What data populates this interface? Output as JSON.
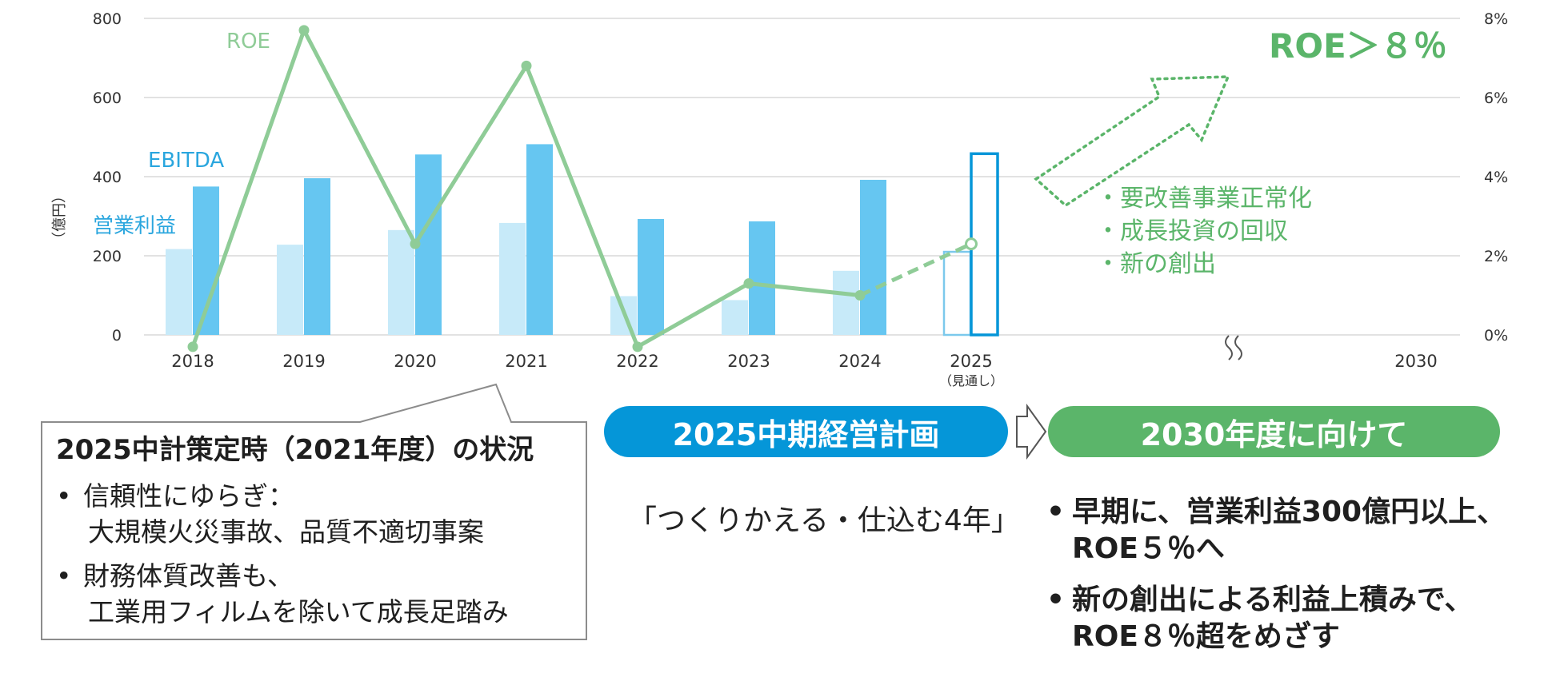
{
  "chart_data": {
    "type": "bar",
    "categories": [
      "2018",
      "2019",
      "2020",
      "2021",
      "2022",
      "2023",
      "2024",
      "2025"
    ],
    "forecast_note": "（見通し）",
    "x_extra_label": "2030",
    "y_left": {
      "label": "（億円）",
      "ticks": [
        "0",
        "200",
        "400",
        "600",
        "800"
      ],
      "range": [
        0,
        800
      ]
    },
    "y_right": {
      "ticks": [
        "0%",
        "2%",
        "4%",
        "6%",
        "8%"
      ],
      "range": [
        0,
        8
      ]
    },
    "series": [
      {
        "name": "営業利益",
        "type": "bar",
        "color": "#c7eaf9",
        "values": [
          217,
          228,
          265,
          283,
          98,
          88,
          162,
          210
        ]
      },
      {
        "name": "EBITDA",
        "type": "bar",
        "color": "#66c6f1",
        "values": [
          375,
          396,
          456,
          482,
          293,
          287,
          392,
          458
        ]
      },
      {
        "name": "ROE",
        "type": "line",
        "axis": "right",
        "color": "#8fcc97",
        "values": [
          -0.3,
          7.7,
          2.3,
          6.8,
          -0.3,
          1.3,
          1.0,
          2.3
        ]
      }
    ],
    "legend": "inline",
    "target_label": "ROE＞８％",
    "target_items": [
      "・要改善事業正常化",
      "・成長投資の回収",
      "・新の創出"
    ]
  },
  "colors": {
    "blue_accent": "#0596d8",
    "green_accent": "#5bb56a",
    "roe_line": "#8fcc97"
  },
  "callout": {
    "title": "2025中計策定時（2021年度）の状況",
    "items": [
      {
        "bullet": "•",
        "lines": [
          "信頼性にゆらぎ：",
          "大規模火災事故、品質不適切事案"
        ]
      },
      {
        "bullet": "•",
        "lines": [
          "財務体質改善も、",
          "工業用フィルムを除いて成長足踏み"
        ]
      }
    ]
  },
  "plan": {
    "title": "2025中期経営計画",
    "slogan": "「つくりかえる・仕込む4年」"
  },
  "future": {
    "title": "2030年度に向けて",
    "goals": [
      {
        "bullet": "•",
        "lines": [
          "早期に、営業利益300億円以上、",
          "ROE５％へ"
        ]
      },
      {
        "bullet": "•",
        "lines": [
          "新の創出による利益上積みで、",
          "ROE８％超をめざす"
        ]
      }
    ]
  }
}
